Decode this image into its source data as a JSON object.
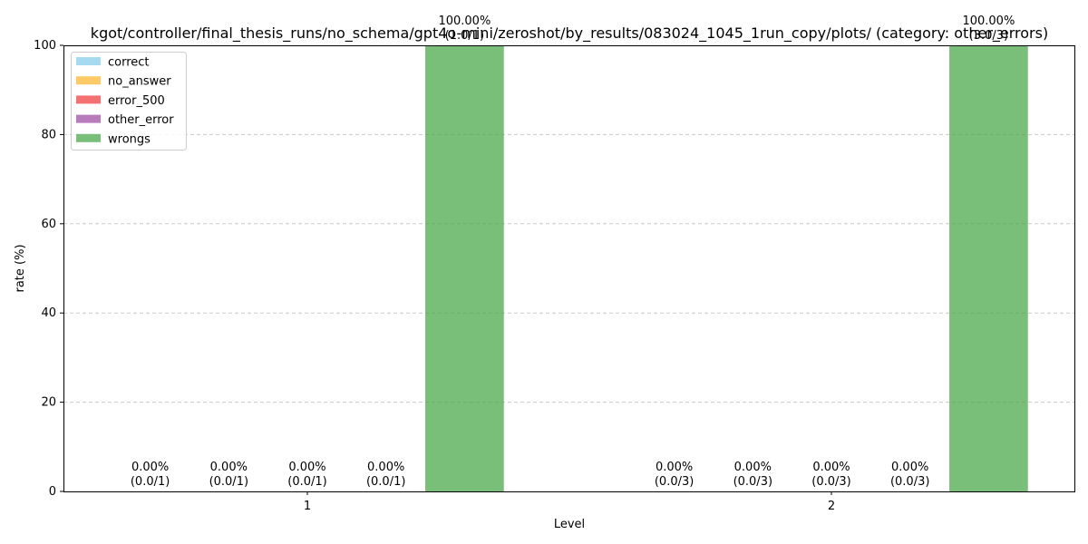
{
  "chart_data": {
    "type": "bar",
    "title": "kgot/controller/final_thesis_runs/no_schema/gpt4o-mini/zeroshot/by_results/083024_1045_1run_copy/plots/ (category: other_errors)",
    "xlabel": "Level",
    "ylabel": "rate (%)",
    "ylim": [
      0,
      100
    ],
    "yticks": [
      "0",
      "20",
      "40",
      "60",
      "80",
      "100"
    ],
    "categories": [
      "1",
      "2"
    ],
    "grid": "y",
    "legend_position": "top-left",
    "series": [
      {
        "name": "correct",
        "color": "#87ceeb",
        "values": [
          0,
          0
        ],
        "labels": [
          "0.00%",
          "0.00%"
        ],
        "counts": [
          "(0.0/1)",
          "(0.0/3)"
        ]
      },
      {
        "name": "no_answer",
        "color": "#ffb833",
        "values": [
          0,
          0
        ],
        "labels": [
          "0.00%",
          "0.00%"
        ],
        "counts": [
          "(0.0/1)",
          "(0.0/3)"
        ]
      },
      {
        "name": "error_500",
        "color": "#ef4141",
        "values": [
          0,
          0
        ],
        "labels": [
          "0.00%",
          "0.00%"
        ],
        "counts": [
          "(0.0/1)",
          "(0.0/3)"
        ]
      },
      {
        "name": "other_error",
        "color": "#a04fa6",
        "values": [
          0,
          0
        ],
        "labels": [
          "0.00%",
          "0.00%"
        ],
        "counts": [
          "(0.0/1)",
          "(0.0/3)"
        ]
      },
      {
        "name": "wrongs",
        "color": "#4ca84c",
        "values": [
          100,
          100
        ],
        "labels": [
          "100.00%",
          "100.00%"
        ],
        "counts": [
          "(1.0/1)",
          "(3.0/3)"
        ]
      }
    ]
  }
}
